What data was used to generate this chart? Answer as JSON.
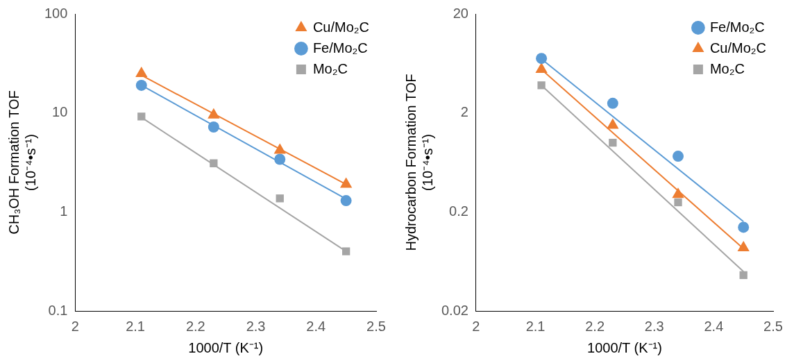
{
  "chart_data": [
    {
      "type": "scatter",
      "ylabel": "CH₃OH Formation TOF\n(10⁻⁴•s⁻¹)",
      "xlabel": "1000/T (K⁻¹)",
      "log": "y",
      "grid": false,
      "legend": "top right",
      "xlim": [
        2,
        2.5
      ],
      "xticks": [
        2,
        2.1,
        2.2,
        2.3,
        2.4,
        2.5
      ],
      "ylim": [
        0.1,
        100
      ],
      "yticks": [
        0.1,
        1,
        10,
        100
      ],
      "series": [
        {
          "name": "Cu/Mo₂C",
          "color": "#ed7d31",
          "marker": "triangle",
          "x": [
            2.11,
            2.23,
            2.34,
            2.45
          ],
          "values": [
            25,
            9.5,
            4.2,
            1.9
          ]
        },
        {
          "name": "Fe/Mo₂C",
          "color": "#5b9bd5",
          "marker": "circle",
          "x": [
            2.11,
            2.23,
            2.34,
            2.45
          ],
          "values": [
            19,
            7.2,
            3.4,
            1.3
          ]
        },
        {
          "name": "Mo₂C",
          "color": "#a5a5a5",
          "marker": "square",
          "x": [
            2.11,
            2.23,
            2.34,
            2.45
          ],
          "values": [
            9.2,
            3.1,
            1.37,
            0.4
          ]
        },
        {
          "type": "line",
          "color": "#ed7d31",
          "marker": "none",
          "x": [
            2.11,
            2.45
          ],
          "values": [
            24,
            1.9
          ]
        },
        {
          "type": "line",
          "color": "#5b9bd5",
          "marker": "none",
          "x": [
            2.11,
            2.45
          ],
          "values": [
            19,
            1.35
          ]
        },
        {
          "type": "line",
          "color": "#a5a5a5",
          "marker": "none",
          "x": [
            2.11,
            2.45
          ],
          "values": [
            9,
            0.4
          ]
        }
      ]
    },
    {
      "type": "scatter",
      "ylabel": "Hydrocarbon Formation TOF\n(10⁻⁴•s⁻¹)",
      "xlabel": "1000/T (K⁻¹)",
      "log": "y",
      "grid": false,
      "legend": "top right",
      "xlim": [
        2,
        2.5
      ],
      "xticks": [
        2,
        2.1,
        2.2,
        2.3,
        2.4,
        2.5
      ],
      "ylim": [
        0.02,
        20
      ],
      "yticks": [
        0.02,
        0.2,
        2,
        20
      ],
      "series": [
        {
          "name": "Fe/Mo₂C",
          "color": "#5b9bd5",
          "marker": "circle",
          "x": [
            2.11,
            2.23,
            2.34,
            2.45
          ],
          "values": [
            7.1,
            2.5,
            0.73,
            0.14
          ]
        },
        {
          "name": "Cu/Mo₂C",
          "color": "#ed7d31",
          "marker": "triangle",
          "x": [
            2.11,
            2.23,
            2.34,
            2.45
          ],
          "values": [
            5.5,
            1.5,
            0.3,
            0.087
          ]
        },
        {
          "name": "Mo₂C",
          "color": "#a5a5a5",
          "marker": "square",
          "x": [
            2.11,
            2.23,
            2.34,
            2.45
          ],
          "values": [
            3.8,
            1.0,
            0.25,
            0.046
          ]
        },
        {
          "type": "line",
          "color": "#5b9bd5",
          "marker": "none",
          "x": [
            2.11,
            2.45
          ],
          "values": [
            7,
            0.16
          ]
        },
        {
          "type": "line",
          "color": "#ed7d31",
          "marker": "none",
          "x": [
            2.11,
            2.45
          ],
          "values": [
            5.5,
            0.085
          ]
        },
        {
          "type": "line",
          "color": "#a5a5a5",
          "marker": "none",
          "x": [
            2.11,
            2.45
          ],
          "values": [
            3.8,
            0.05
          ]
        }
      ]
    }
  ]
}
